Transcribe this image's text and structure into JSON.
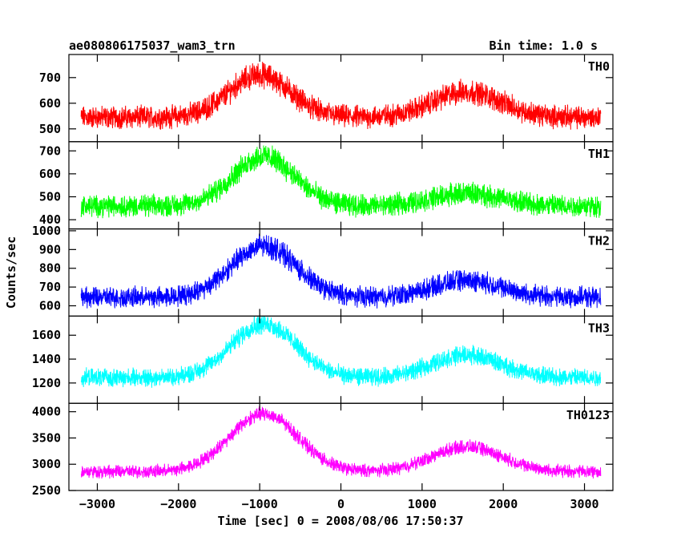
{
  "header": {
    "title": "ae080806175037_wam3_trn",
    "bin_time": "Bin time: 1.0 s"
  },
  "chart_data": {
    "type": "line",
    "xlabel": "Time [sec] 0 = 2008/08/06 17:50:37",
    "ylabel": "Counts/sec",
    "xlim": [
      -3350,
      3350
    ],
    "x_ticks": [
      -3000,
      -2000,
      -1000,
      0,
      1000,
      2000,
      3000
    ],
    "x_range_data": [
      -3200,
      3200
    ],
    "panels": [
      {
        "name": "TH0",
        "color": "#ff0000",
        "ylim": [
          450,
          790
        ],
        "y_ticks": [
          500,
          600,
          700
        ],
        "baseline": 545,
        "noise": 65,
        "peaks": [
          {
            "x": -1000,
            "height": 165,
            "width": 380
          },
          {
            "x": 1550,
            "height": 100,
            "width": 420
          }
        ]
      },
      {
        "name": "TH1",
        "color": "#00ff00",
        "ylim": [
          360,
          740
        ],
        "y_ticks": [
          400,
          500,
          600,
          700
        ],
        "baseline": 460,
        "noise": 70,
        "peaks": [
          {
            "x": -950,
            "height": 215,
            "width": 380
          },
          {
            "x": 1550,
            "height": 55,
            "width": 420
          }
        ]
      },
      {
        "name": "TH2",
        "color": "#0000ff",
        "ylim": [
          545,
          1010
        ],
        "y_ticks": [
          600,
          700,
          800,
          900,
          1000
        ],
        "baseline": 645,
        "noise": 80,
        "peaks": [
          {
            "x": -950,
            "height": 275,
            "width": 400
          },
          {
            "x": 1550,
            "height": 90,
            "width": 420
          }
        ]
      },
      {
        "name": "TH3",
        "color": "#00ffff",
        "ylim": [
          1030,
          1760
        ],
        "y_ticks": [
          1200,
          1400,
          1600
        ],
        "baseline": 1245,
        "noise": 110,
        "peaks": [
          {
            "x": -950,
            "height": 450,
            "width": 400
          },
          {
            "x": 1550,
            "height": 190,
            "width": 420
          }
        ]
      },
      {
        "name": "TH0123",
        "color": "#ff00ff",
        "ylim": [
          2500,
          4160
        ],
        "y_ticks": [
          2500,
          3000,
          3500,
          4000
        ],
        "baseline": 2860,
        "noise": 180,
        "peaks": [
          {
            "x": -950,
            "height": 1100,
            "width": 420
          },
          {
            "x": 1550,
            "height": 470,
            "width": 430
          }
        ]
      }
    ]
  }
}
